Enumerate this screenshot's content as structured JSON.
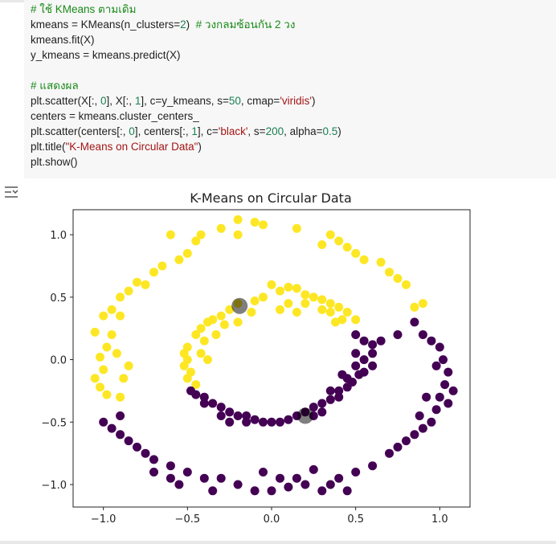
{
  "cell": {
    "code_lines": [
      [
        {
          "t": "# ใช้ KMeans ตามเดิม",
          "c": "cm"
        }
      ],
      [
        {
          "t": "kmeans = KMeans(n_clusters="
        },
        {
          "t": "2",
          "c": "num"
        },
        {
          "t": ")  "
        },
        {
          "t": "# วงกลมซ้อนกัน 2 วง",
          "c": "cm"
        }
      ],
      [
        {
          "t": "kmeans.fit(X)"
        }
      ],
      [
        {
          "t": "y_kmeans = kmeans.predict(X)"
        }
      ],
      [
        {
          "t": ""
        }
      ],
      [
        {
          "t": "# แสดงผล",
          "c": "cm"
        }
      ],
      [
        {
          "t": "plt.scatter(X[:, "
        },
        {
          "t": "0",
          "c": "num"
        },
        {
          "t": "], X[:, "
        },
        {
          "t": "1",
          "c": "num"
        },
        {
          "t": "], c=y_kmeans, s="
        },
        {
          "t": "50",
          "c": "num"
        },
        {
          "t": ", cmap="
        },
        {
          "t": "'viridis'",
          "c": "str"
        },
        {
          "t": ")"
        }
      ],
      [
        {
          "t": "centers = kmeans.cluster_centers_"
        }
      ],
      [
        {
          "t": "plt.scatter(centers[:, "
        },
        {
          "t": "0",
          "c": "num"
        },
        {
          "t": "], centers[:, "
        },
        {
          "t": "1",
          "c": "num"
        },
        {
          "t": "], c="
        },
        {
          "t": "'black'",
          "c": "str"
        },
        {
          "t": ", s="
        },
        {
          "t": "200",
          "c": "num"
        },
        {
          "t": ", alpha="
        },
        {
          "t": "0.5",
          "c": "num"
        },
        {
          "t": ")"
        }
      ],
      [
        {
          "t": "plt.title("
        },
        {
          "t": "\"K-Means on Circular Data\"",
          "c": "str"
        },
        {
          "t": ")"
        }
      ],
      [
        {
          "t": "plt.show()"
        }
      ]
    ]
  },
  "output": {
    "icon": "output-toggle-icon",
    "chart_data": {
      "type": "scatter",
      "title": "K-Means on Circular Data",
      "xlabel": "",
      "ylabel": "",
      "xlim": [
        -1.18,
        1.18
      ],
      "ylim": [
        -1.18,
        1.2
      ],
      "xticks": [
        -1.0,
        -0.5,
        0.0,
        0.5,
        1.0
      ],
      "yticks": [
        -1.0,
        -0.5,
        0.0,
        0.5,
        1.0
      ],
      "xtick_labels": [
        "−1.0",
        "−0.5",
        "0.0",
        "0.5",
        "1.0"
      ],
      "ytick_labels": [
        "−1.0",
        "−0.5",
        "0.0",
        "0.5",
        "1.0"
      ],
      "grid": false,
      "colors": {
        "cluster_0": "#440154",
        "cluster_1": "#fde725",
        "centers": "#000000"
      },
      "series": [
        {
          "cluster": 1,
          "color": "#fde725",
          "points": [
            [
              -0.2,
              1.12
            ],
            [
              -0.1,
              1.1
            ],
            [
              -0.05,
              1.08
            ],
            [
              -0.3,
              1.05
            ],
            [
              -0.2,
              1.0
            ],
            [
              0.15,
              1.05
            ],
            [
              0.35,
              1.0
            ],
            [
              0.4,
              0.95
            ],
            [
              0.3,
              0.92
            ],
            [
              0.45,
              0.9
            ],
            [
              -0.42,
              1.0
            ],
            [
              -0.45,
              0.95
            ],
            [
              -0.6,
              1.0
            ],
            [
              -0.5,
              0.85
            ],
            [
              -0.55,
              0.8
            ],
            [
              0.5,
              0.85
            ],
            [
              0.55,
              0.8
            ],
            [
              -0.65,
              0.75
            ],
            [
              -0.7,
              0.7
            ],
            [
              -0.75,
              0.6
            ],
            [
              -0.8,
              0.62
            ],
            [
              -0.85,
              0.55
            ],
            [
              -0.9,
              0.5
            ],
            [
              0.65,
              0.78
            ],
            [
              0.7,
              0.7
            ],
            [
              0.75,
              0.65
            ],
            [
              0.8,
              0.6
            ],
            [
              -0.95,
              0.4
            ],
            [
              -0.9,
              0.35
            ],
            [
              -1.0,
              0.35
            ],
            [
              -1.05,
              0.22
            ],
            [
              -0.98,
              0.1
            ],
            [
              -1.02,
              0.02
            ],
            [
              -1.0,
              -0.08
            ],
            [
              -1.05,
              -0.15
            ],
            [
              -1.02,
              -0.22
            ],
            [
              -0.98,
              -0.28
            ],
            [
              -0.88,
              -0.15
            ],
            [
              -0.9,
              -0.3
            ],
            [
              0.9,
              0.45
            ],
            [
              0.85,
              0.42
            ],
            [
              -0.95,
              0.2
            ],
            [
              -0.92,
              0.05
            ],
            [
              -0.85,
              -0.05
            ],
            [
              0.0,
              0.6
            ],
            [
              0.05,
              0.55
            ],
            [
              0.1,
              0.58
            ],
            [
              0.15,
              0.57
            ],
            [
              0.2,
              0.52
            ],
            [
              0.25,
              0.5
            ],
            [
              0.3,
              0.48
            ],
            [
              -0.05,
              0.5
            ],
            [
              -0.1,
              0.47
            ],
            [
              -0.2,
              0.45
            ],
            [
              -0.25,
              0.4
            ],
            [
              -0.3,
              0.35
            ],
            [
              -0.35,
              0.32
            ],
            [
              -0.38,
              0.3
            ],
            [
              -0.42,
              0.25
            ],
            [
              -0.45,
              0.2
            ],
            [
              -0.5,
              0.1
            ],
            [
              -0.52,
              0.05
            ],
            [
              -0.5,
              0.0
            ],
            [
              -0.52,
              -0.05
            ],
            [
              -0.48,
              -0.1
            ],
            [
              -0.5,
              -0.15
            ],
            [
              -0.45,
              -0.2
            ],
            [
              0.35,
              0.45
            ],
            [
              0.4,
              0.42
            ],
            [
              0.45,
              0.38
            ],
            [
              0.5,
              0.32
            ],
            [
              0.42,
              0.32
            ],
            [
              0.38,
              0.3
            ],
            [
              -0.12,
              0.38
            ],
            [
              -0.2,
              0.3
            ],
            [
              -0.28,
              0.28
            ],
            [
              -0.33,
              0.2
            ],
            [
              -0.4,
              0.15
            ],
            [
              -0.42,
              0.05
            ],
            [
              -0.38,
              0.0
            ],
            [
              0.2,
              0.45
            ],
            [
              0.1,
              0.45
            ],
            [
              0.05,
              0.4
            ],
            [
              0.15,
              0.38
            ],
            [
              0.3,
              0.4
            ],
            [
              0.35,
              0.38
            ]
          ]
        },
        {
          "cluster": 0,
          "color": "#440154",
          "points": [
            [
              0.5,
              0.2
            ],
            [
              0.55,
              0.15
            ],
            [
              0.6,
              0.12
            ],
            [
              0.6,
              0.05
            ],
            [
              0.55,
              0.0
            ],
            [
              0.5,
              -0.05
            ],
            [
              0.52,
              -0.12
            ],
            [
              0.48,
              -0.18
            ],
            [
              0.45,
              -0.22
            ],
            [
              0.4,
              -0.3
            ],
            [
              0.35,
              -0.32
            ],
            [
              0.3,
              -0.35
            ],
            [
              0.25,
              -0.38
            ],
            [
              0.2,
              -0.42
            ],
            [
              0.15,
              -0.45
            ],
            [
              0.1,
              -0.48
            ],
            [
              0.05,
              -0.5
            ],
            [
              0.0,
              -0.5
            ],
            [
              -0.05,
              -0.5
            ],
            [
              -0.1,
              -0.48
            ],
            [
              -0.15,
              -0.45
            ],
            [
              -0.2,
              -0.45
            ],
            [
              -0.25,
              -0.42
            ],
            [
              -0.3,
              -0.38
            ],
            [
              -0.35,
              -0.35
            ],
            [
              -0.4,
              -0.3
            ],
            [
              -0.45,
              -0.28
            ],
            [
              -0.48,
              -0.25
            ],
            [
              0.55,
              -0.1
            ],
            [
              0.6,
              -0.05
            ],
            [
              0.5,
              0.05
            ],
            [
              0.45,
              -0.15
            ],
            [
              0.4,
              -0.25
            ],
            [
              0.3,
              -0.42
            ],
            [
              0.25,
              -0.45
            ],
            [
              -0.3,
              -0.45
            ],
            [
              -0.4,
              -0.35
            ],
            [
              -0.25,
              -0.5
            ],
            [
              -0.15,
              -0.5
            ],
            [
              0.35,
              -0.25
            ],
            [
              0.42,
              -0.12
            ],
            [
              0.65,
              0.15
            ],
            [
              0.75,
              0.2
            ],
            [
              0.85,
              0.3
            ],
            [
              0.9,
              0.2
            ],
            [
              0.95,
              0.15
            ],
            [
              1.0,
              0.1
            ],
            [
              1.02,
              0.0
            ],
            [
              1.05,
              -0.1
            ],
            [
              1.03,
              -0.2
            ],
            [
              1.0,
              -0.3
            ],
            [
              0.98,
              -0.4
            ],
            [
              0.95,
              -0.5
            ],
            [
              0.9,
              -0.55
            ],
            [
              0.85,
              -0.6
            ],
            [
              0.8,
              -0.65
            ],
            [
              0.75,
              -0.7
            ],
            [
              0.7,
              -0.75
            ],
            [
              0.6,
              -0.85
            ],
            [
              0.5,
              -0.9
            ],
            [
              0.4,
              -0.95
            ],
            [
              0.35,
              -1.0
            ],
            [
              0.3,
              -1.05
            ],
            [
              0.2,
              -1.0
            ],
            [
              0.1,
              -1.02
            ],
            [
              0.0,
              -1.05
            ],
            [
              -0.1,
              -1.05
            ],
            [
              -0.2,
              -1.0
            ],
            [
              -0.3,
              -0.95
            ],
            [
              -0.4,
              -0.95
            ],
            [
              -0.5,
              -0.9
            ],
            [
              -0.6,
              -0.85
            ],
            [
              -0.7,
              -0.8
            ],
            [
              -0.75,
              -0.75
            ],
            [
              -0.8,
              -0.7
            ],
            [
              -0.85,
              -0.65
            ],
            [
              -0.9,
              -0.6
            ],
            [
              -0.95,
              -0.55
            ],
            [
              -0.9,
              -0.45
            ],
            [
              -1.0,
              -0.5
            ],
            [
              0.88,
              -0.45
            ],
            [
              0.92,
              -0.3
            ],
            [
              1.08,
              -0.25
            ],
            [
              1.05,
              -0.35
            ],
            [
              0.98,
              -0.05
            ],
            [
              -0.7,
              -0.9
            ],
            [
              -0.6,
              -0.95
            ],
            [
              -0.55,
              -1.0
            ],
            [
              0.05,
              -0.95
            ],
            [
              0.15,
              -0.95
            ],
            [
              -0.35,
              -1.05
            ],
            [
              0.25,
              -0.88
            ],
            [
              0.45,
              -1.05
            ],
            [
              -0.05,
              -0.9
            ]
          ]
        }
      ],
      "centers": [
        [
          -0.19,
          0.43
        ],
        [
          0.2,
          -0.45
        ]
      ]
    }
  }
}
